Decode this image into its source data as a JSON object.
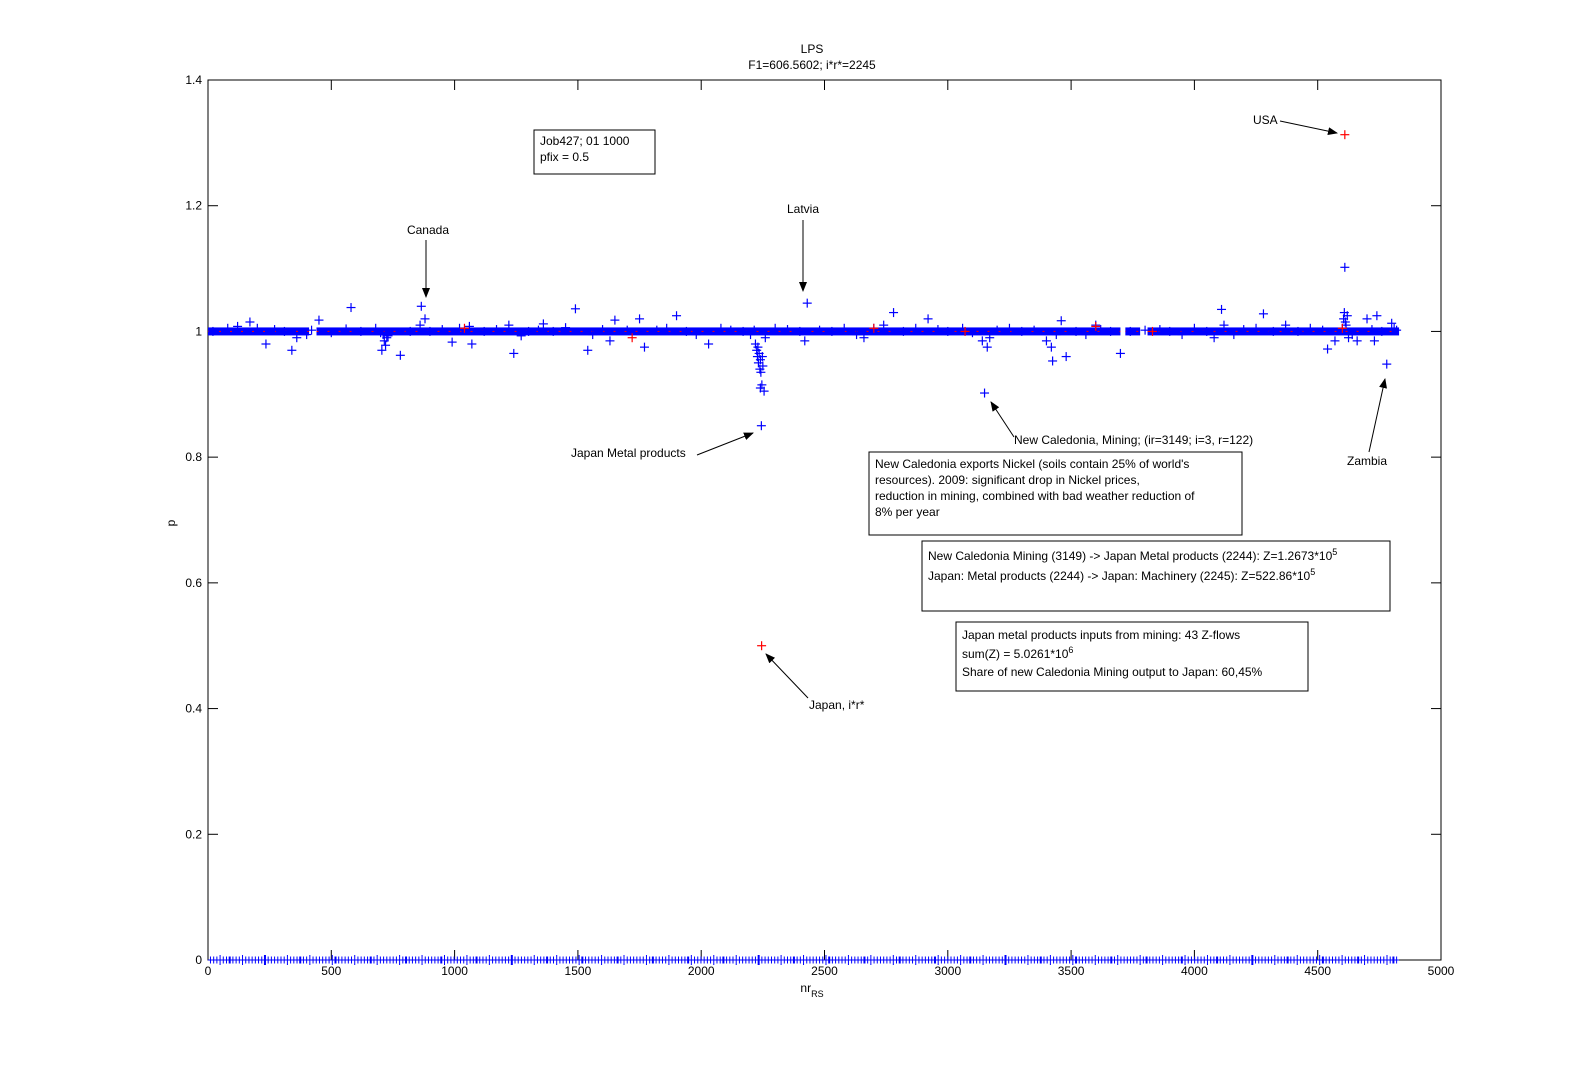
{
  "chart_data": {
    "type": "scatter",
    "title": "LPS",
    "subtitle": "F1=606.5602; i*r*=2245",
    "xlabel": "nr",
    "xlabel_sub": "RS",
    "ylabel": "p",
    "xlim": [
      0,
      5000
    ],
    "ylim": [
      0,
      1.4
    ],
    "xticks": [
      0,
      500,
      1000,
      1500,
      2000,
      2500,
      3000,
      3500,
      4000,
      4500,
      5000
    ],
    "yticks": [
      0,
      0.2,
      0.4,
      0.6,
      0.8,
      1,
      1.2,
      1.4
    ],
    "ytick_labels": [
      "0",
      "0.2",
      "0.4",
      "0.6",
      "0.8",
      "1",
      "1.2",
      "1.4"
    ],
    "grid": false,
    "colors": {
      "blue": "#0000ff",
      "red": "#ff0000",
      "axis": "#000000"
    },
    "series": [
      {
        "color": "blue",
        "marker": "+",
        "points": [
          [
            20,
            1.0
          ],
          [
            80,
            1.005
          ],
          [
            120,
            1.008
          ],
          [
            170,
            1.015
          ],
          [
            200,
            1.005
          ],
          [
            235,
            0.98
          ],
          [
            270,
            1.003
          ],
          [
            310,
            1.0
          ],
          [
            340,
            0.97
          ],
          [
            360,
            0.99
          ],
          [
            400,
            0.995
          ],
          [
            420,
            1.002
          ],
          [
            450,
            1.018
          ],
          [
            500,
            0.998
          ],
          [
            560,
            1.004
          ],
          [
            580,
            1.038
          ],
          [
            620,
            1.0
          ],
          [
            680,
            1.005
          ],
          [
            700,
            0.998
          ],
          [
            710,
            0.995
          ],
          [
            715,
            0.985
          ],
          [
            720,
            0.978
          ],
          [
            725,
            0.99
          ],
          [
            730,
            0.993
          ],
          [
            705,
            0.97
          ],
          [
            780,
            0.962
          ],
          [
            820,
            1.0
          ],
          [
            860,
            1.01
          ],
          [
            865,
            1.04
          ],
          [
            880,
            1.02
          ],
          [
            900,
            1.0
          ],
          [
            950,
            1.003
          ],
          [
            990,
            0.983
          ],
          [
            1020,
            1.005
          ],
          [
            1060,
            1.008
          ],
          [
            1070,
            0.98
          ],
          [
            1120,
            1.0
          ],
          [
            1170,
            1.003
          ],
          [
            1220,
            1.01
          ],
          [
            1240,
            0.965
          ],
          [
            1270,
            0.993
          ],
          [
            1300,
            1.0
          ],
          [
            1340,
            1.002
          ],
          [
            1360,
            1.012
          ],
          [
            1400,
            1.0
          ],
          [
            1450,
            1.006
          ],
          [
            1490,
            1.036
          ],
          [
            1540,
            0.97
          ],
          [
            1560,
            0.995
          ],
          [
            1600,
            1.003
          ],
          [
            1630,
            0.985
          ],
          [
            1650,
            1.018
          ],
          [
            1700,
            1.002
          ],
          [
            1750,
            1.02
          ],
          [
            1770,
            0.975
          ],
          [
            1820,
            1.002
          ],
          [
            1860,
            1.005
          ],
          [
            1900,
            1.025
          ],
          [
            1940,
            1.0
          ],
          [
            1980,
            0.995
          ],
          [
            2030,
            0.98
          ],
          [
            2080,
            1.005
          ],
          [
            2120,
            1.002
          ],
          [
            2170,
            1.0
          ],
          [
            2200,
            0.995
          ],
          [
            2215,
            1.002
          ],
          [
            2220,
            0.98
          ],
          [
            2225,
            0.97
          ],
          [
            2228,
            0.96
          ],
          [
            2230,
            0.975
          ],
          [
            2232,
            0.95
          ],
          [
            2235,
            0.965
          ],
          [
            2238,
            0.94
          ],
          [
            2240,
            0.955
          ],
          [
            2242,
            0.935
          ],
          [
            2244,
            0.85
          ],
          [
            2246,
            0.915
          ],
          [
            2248,
            0.96
          ],
          [
            2250,
            0.945
          ],
          [
            2255,
            0.905
          ],
          [
            2240,
            0.91
          ],
          [
            2260,
            0.99
          ],
          [
            2300,
            1.005
          ],
          [
            2350,
            1.003
          ],
          [
            2400,
            1.0
          ],
          [
            2420,
            0.985
          ],
          [
            2430,
            1.045
          ],
          [
            2480,
            1.002
          ],
          [
            2530,
            1.0
          ],
          [
            2580,
            1.005
          ],
          [
            2630,
            0.995
          ],
          [
            2660,
            0.99
          ],
          [
            2700,
            1.005
          ],
          [
            2740,
            1.01
          ],
          [
            2780,
            1.03
          ],
          [
            2820,
            1.0
          ],
          [
            2870,
            1.005
          ],
          [
            2920,
            1.02
          ],
          [
            2960,
            1.003
          ],
          [
            3000,
            1.0
          ],
          [
            3060,
            1.005
          ],
          [
            3100,
            0.998
          ],
          [
            3140,
            0.985
          ],
          [
            3149,
            0.902
          ],
          [
            3160,
            0.975
          ],
          [
            3170,
            0.99
          ],
          [
            3200,
            1.002
          ],
          [
            3250,
            1.005
          ],
          [
            3300,
            1.0
          ],
          [
            3350,
            1.002
          ],
          [
            3400,
            0.985
          ],
          [
            3420,
            0.975
          ],
          [
            3425,
            0.953
          ],
          [
            3440,
            0.995
          ],
          [
            3460,
            1.017
          ],
          [
            3480,
            0.96
          ],
          [
            3520,
            1.0
          ],
          [
            3560,
            0.995
          ],
          [
            3600,
            1.01
          ],
          [
            3620,
            1.003
          ],
          [
            3660,
            1.0
          ],
          [
            3700,
            0.965
          ],
          [
            3740,
            1.0
          ],
          [
            3800,
            1.002
          ],
          [
            3860,
            1.003
          ],
          [
            3900,
            1.0
          ],
          [
            3950,
            0.995
          ],
          [
            4000,
            1.005
          ],
          [
            4050,
            1.0
          ],
          [
            4080,
            0.99
          ],
          [
            4110,
            1.035
          ],
          [
            4120,
            1.01
          ],
          [
            4160,
            0.995
          ],
          [
            4200,
            1.003
          ],
          [
            4250,
            1.005
          ],
          [
            4280,
            1.028
          ],
          [
            4320,
            1.0
          ],
          [
            4370,
            1.01
          ],
          [
            4420,
            1.0
          ],
          [
            4470,
            1.005
          ],
          [
            4520,
            1.002
          ],
          [
            4540,
            0.972
          ],
          [
            4570,
            0.985
          ],
          [
            4600,
            1.005
          ],
          [
            4605,
            1.02
          ],
          [
            4608,
            1.03
          ],
          [
            4610,
            1.102
          ],
          [
            4612,
            1.015
          ],
          [
            4615,
            1.01
          ],
          [
            4620,
            1.025
          ],
          [
            4625,
            0.99
          ],
          [
            4640,
            0.995
          ],
          [
            4660,
            0.985
          ],
          [
            4700,
            1.02
          ],
          [
            4720,
            1.003
          ],
          [
            4730,
            0.985
          ],
          [
            4740,
            1.025
          ],
          [
            4760,
            1.0
          ],
          [
            4780,
            0.948
          ],
          [
            4800,
            1.013
          ],
          [
            4810,
            1.005
          ],
          [
            4820,
            1.002
          ]
        ]
      },
      {
        "color": "red",
        "marker": "+",
        "points": [
          [
            4610,
            1.313
          ],
          [
            2245,
            0.5
          ],
          [
            1720,
            0.99
          ],
          [
            1040,
            1.005
          ],
          [
            2700,
            1.005
          ],
          [
            3600,
            1.008
          ],
          [
            3070,
            1.0
          ],
          [
            3830,
            1.0
          ],
          [
            4600,
            1.005
          ]
        ]
      }
    ],
    "band": {
      "y": 1.0,
      "segments": [
        [
          0,
          410
        ],
        [
          440,
          3700
        ],
        [
          3720,
          3780
        ],
        [
          3810,
          4830
        ]
      ]
    },
    "annotations": [
      {
        "text": "Canada",
        "point": [
          880,
          1.055
        ]
      },
      {
        "text": "Latvia",
        "point": [
          2430,
          1.065
        ]
      },
      {
        "text": "USA",
        "point": [
          4580,
          1.315
        ]
      },
      {
        "text": "Japan Metal products",
        "point": [
          2220,
          0.845
        ]
      },
      {
        "text": "New Caledonia, Mining; (ir=3149; i=3, r=122)",
        "point": [
          3180,
          0.895
        ]
      },
      {
        "text": "Zambia",
        "point": [
          4790,
          0.925
        ]
      },
      {
        "text": "Japan, i*r*",
        "point": [
          2255,
          0.49
        ]
      }
    ]
  },
  "boxes": {
    "job": [
      "Job427; 01 1000",
      "pfix = 0.5"
    ],
    "nickel": [
      "New Caledonia exports Nickel (soils contain 25% of world's",
      "resources). 2009: significant drop in Nickel prices,",
      "reduction in mining, combined with bad weather reduction of",
      "8% per year"
    ],
    "flows": {
      "line1": "New Caledonia Mining (3149) -> Japan Metal products (2244): Z=1.2673*10",
      "line1_exp": "5",
      "line2": "Japan: Metal products (2244) -> Japan: Machinery (2245): Z=522.86*10",
      "line2_exp": "5"
    },
    "inputs": {
      "line1": "Japan metal products inputs from mining: 43 Z-flows",
      "line2": "sum(Z) = 5.0261*10",
      "line2_exp": "6",
      "line3": "Share of new Caledonia Mining output to Japan: 60,45%"
    }
  }
}
